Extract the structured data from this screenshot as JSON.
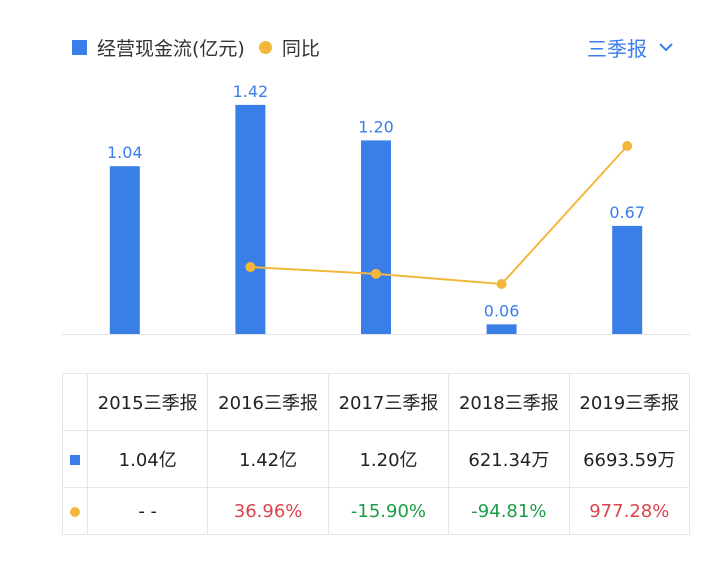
{
  "legend": {
    "bar_label": "经营现金流(亿元)",
    "line_label": "同比"
  },
  "period_select": {
    "label": "三季报"
  },
  "colors": {
    "bar": "#3a7ee8",
    "line": "#f3b73b",
    "positive": "#d9434b",
    "negative": "#1a9e44"
  },
  "chart_data": {
    "type": "bar",
    "categories": [
      "2015三季报",
      "2016三季报",
      "2017三季报",
      "2018三季报",
      "2019三季报"
    ],
    "series": [
      {
        "name": "经营现金流(亿元)",
        "type": "bar",
        "values": [
          1.04,
          1.42,
          1.2,
          0.06,
          0.67
        ],
        "labels": [
          "1.04",
          "1.42",
          "1.20",
          "0.06",
          "0.67"
        ]
      },
      {
        "name": "同比",
        "type": "line",
        "values": [
          null,
          36.96,
          -15.9,
          -94.81,
          977.28
        ]
      }
    ],
    "ylim": [
      0,
      1.5
    ]
  },
  "table": {
    "headers": [
      "2015三季报",
      "2016三季报",
      "2017三季报",
      "2018三季报",
      "2019三季报"
    ],
    "rows": [
      {
        "marker": "square",
        "cells": [
          {
            "text": "1.04亿",
            "tone": ""
          },
          {
            "text": "1.42亿",
            "tone": ""
          },
          {
            "text": "1.20亿",
            "tone": ""
          },
          {
            "text": "621.34万",
            "tone": ""
          },
          {
            "text": "6693.59万",
            "tone": ""
          }
        ]
      },
      {
        "marker": "dot",
        "cells": [
          {
            "text": "- -",
            "tone": ""
          },
          {
            "text": "36.96%",
            "tone": "pos"
          },
          {
            "text": "-15.90%",
            "tone": "neg"
          },
          {
            "text": "-94.81%",
            "tone": "neg"
          },
          {
            "text": "977.28%",
            "tone": "pos"
          }
        ]
      }
    ]
  }
}
